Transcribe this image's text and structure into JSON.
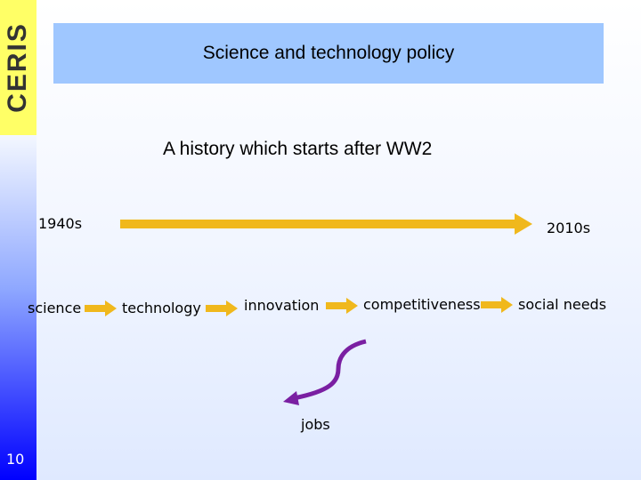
{
  "logo": "CERIS",
  "header": {
    "title": "Science and technology policy"
  },
  "subtitle": "A history which starts after WW2",
  "timeline": {
    "start": "1940s",
    "end": "2010s"
  },
  "chain": [
    "science",
    "technology",
    "innovation",
    "competitiveness",
    "social needs"
  ],
  "branch": "jobs",
  "page_number": "10"
}
